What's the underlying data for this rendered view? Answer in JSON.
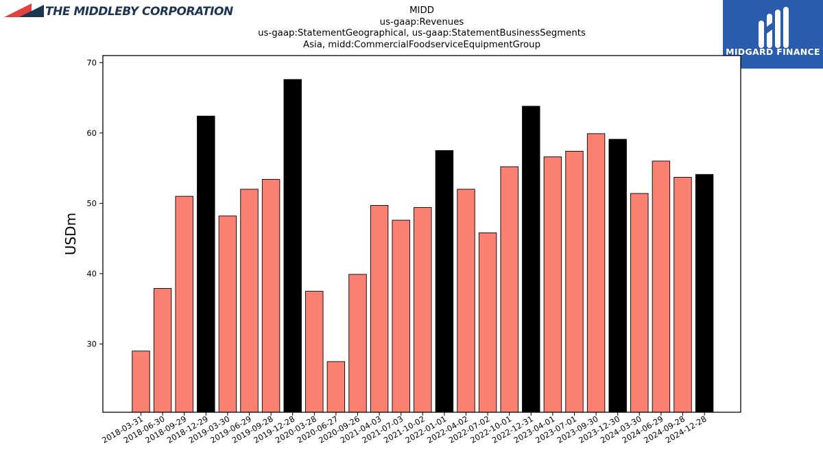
{
  "header": {
    "company_logo_text": "THE MIDDLEBY CORPORATION",
    "brand_logo_text": "MIDGARD FINANCE"
  },
  "colors": {
    "bar_default": "#fa8072",
    "bar_highlight": "#000000",
    "logo_right_bg": "#2a5cad",
    "logo_left_accent": "#e2403f",
    "logo_left_dark": "#1c3553"
  },
  "chart_data": {
    "type": "bar",
    "title_lines": [
      "MIDD",
      "us-gaap:Revenues",
      "us-gaap:StatementGeographical, us-gaap:StatementBusinessSegments",
      "Asia, midd:CommercialFoodserviceEquipmentGroup"
    ],
    "xlabel": "",
    "ylabel": "USDm",
    "ylim": [
      20.3,
      71
    ],
    "yticks": [
      30,
      40,
      50,
      60,
      70
    ],
    "grid": false,
    "legend": "none",
    "categories": [
      "2018-03-31",
      "2018-06-30",
      "2018-09-29",
      "2018-12-29",
      "2019-03-30",
      "2019-06-29",
      "2019-09-28",
      "2019-12-28",
      "2020-03-28",
      "2020-06-27",
      "2020-09-26",
      "2021-04-03",
      "2021-07-03",
      "2021-10-02",
      "2022-01-01",
      "2022-04-02",
      "2022-07-02",
      "2022-10-01",
      "2022-12-31",
      "2023-04-01",
      "2023-07-01",
      "2023-09-30",
      "2023-12-30",
      "2024-03-30",
      "2024-06-29",
      "2024-09-28",
      "2024-12-28"
    ],
    "values": [
      29.0,
      37.9,
      51.0,
      62.4,
      48.2,
      52.0,
      53.4,
      67.6,
      37.5,
      27.5,
      39.9,
      49.7,
      47.6,
      49.4,
      57.5,
      52.0,
      45.8,
      55.2,
      63.8,
      56.6,
      57.4,
      59.9,
      59.1,
      51.4,
      56.0,
      53.7,
      54.1
    ],
    "highlight": [
      false,
      false,
      false,
      true,
      false,
      false,
      false,
      true,
      false,
      false,
      false,
      false,
      false,
      false,
      true,
      false,
      false,
      false,
      true,
      false,
      false,
      false,
      true,
      false,
      false,
      false,
      true
    ]
  }
}
